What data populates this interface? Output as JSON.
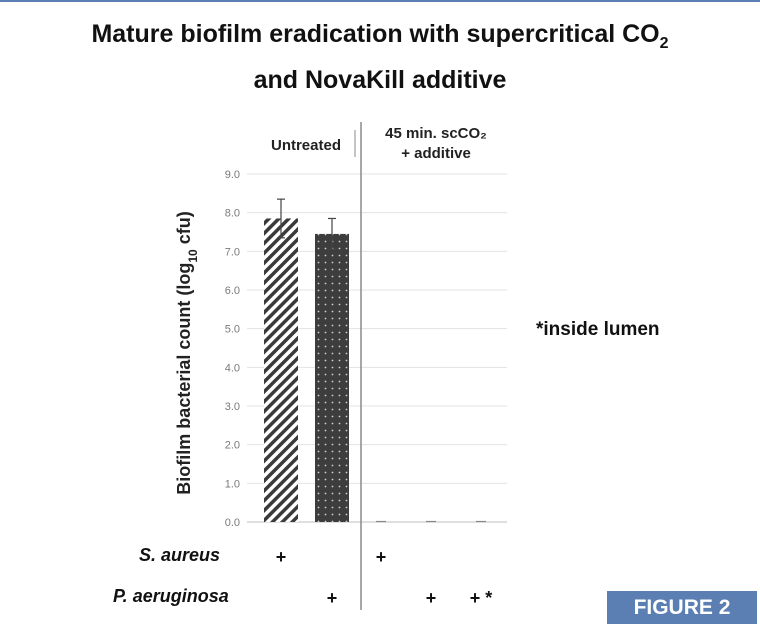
{
  "title": {
    "line1_main": "Mature biofilm eradication with supercritical CO",
    "line1_sub": "2",
    "line2": "and NovaKill additive"
  },
  "chart_data": {
    "type": "bar",
    "ylabel_main": "Biofilm bacterial count (log",
    "ylabel_sub": "10",
    "ylabel_end": " cfu)",
    "ylim": [
      0,
      9
    ],
    "yticks": [
      "0.0",
      "1.0",
      "2.0",
      "3.0",
      "4.0",
      "5.0",
      "6.0",
      "7.0",
      "8.0",
      "9.0"
    ],
    "grid": true,
    "groups": [
      {
        "label_lines": [
          "Untreated"
        ]
      },
      {
        "label_lines": [
          "45 min. scCO₂",
          "+ additive"
        ]
      }
    ],
    "bars": [
      {
        "value": 7.85,
        "error": 0.5,
        "pattern": "hatch",
        "group": 0
      },
      {
        "value": 7.45,
        "error": 0.4,
        "pattern": "dots",
        "group": 0
      },
      {
        "value": 0,
        "error": 0,
        "pattern": "none",
        "group": 1
      },
      {
        "value": 0,
        "error": 0,
        "pattern": "none",
        "group": 1
      },
      {
        "value": 0,
        "error": 0,
        "pattern": "none",
        "group": 1
      }
    ],
    "rows": [
      {
        "label": "S. aureus",
        "marks": [
          "+",
          "",
          "+",
          "",
          ""
        ]
      },
      {
        "label": "P. aeruginosa",
        "marks": [
          "",
          "+",
          "",
          "+",
          "+ *"
        ]
      }
    ]
  },
  "note": "*inside lumen",
  "badge": "FIGURE 2"
}
